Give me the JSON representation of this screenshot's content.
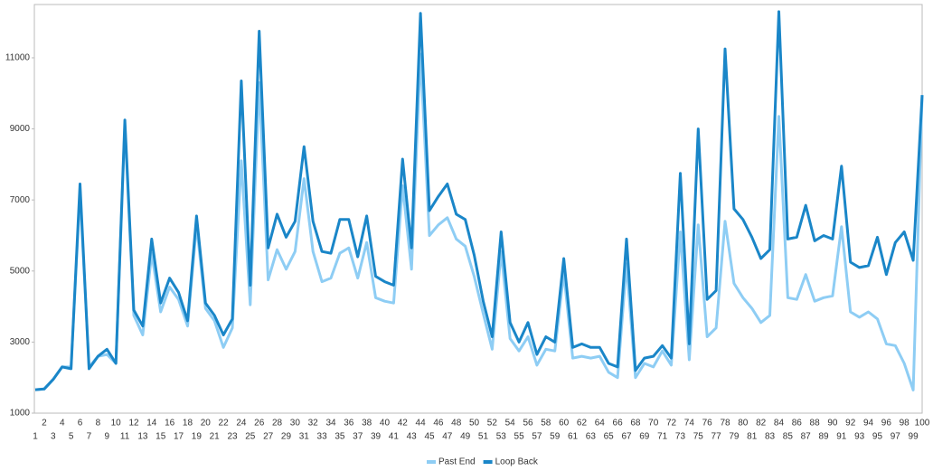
{
  "chart_data": {
    "type": "line",
    "categories": [
      1,
      2,
      3,
      4,
      5,
      6,
      7,
      8,
      9,
      10,
      11,
      12,
      13,
      14,
      15,
      16,
      17,
      18,
      19,
      20,
      21,
      22,
      23,
      24,
      25,
      26,
      27,
      28,
      29,
      30,
      31,
      32,
      33,
      34,
      35,
      36,
      37,
      38,
      39,
      40,
      41,
      42,
      43,
      44,
      45,
      46,
      47,
      48,
      49,
      50,
      51,
      52,
      53,
      54,
      55,
      56,
      57,
      58,
      59,
      60,
      61,
      62,
      63,
      64,
      65,
      66,
      67,
      68,
      69,
      70,
      71,
      72,
      73,
      74,
      75,
      76,
      77,
      78,
      79,
      80,
      81,
      82,
      83,
      84,
      85,
      86,
      87,
      88,
      89,
      90,
      91,
      92,
      93,
      94,
      95,
      96,
      97,
      98,
      99,
      100
    ],
    "series": [
      {
        "name": "Past End",
        "color": "#8ecdf4",
        "values": [
          1660,
          1680,
          1950,
          2300,
          2300,
          7200,
          2300,
          2600,
          2650,
          2400,
          9100,
          3750,
          3200,
          5500,
          3850,
          4550,
          4200,
          3450,
          6300,
          3950,
          3600,
          2850,
          3400,
          8100,
          4050,
          10300,
          4750,
          5600,
          5050,
          5550,
          7600,
          5550,
          4700,
          4800,
          5500,
          5650,
          4800,
          5800,
          4250,
          4150,
          4100,
          7400,
          5050,
          11100,
          6000,
          6300,
          6500,
          5900,
          5700,
          4850,
          3800,
          2800,
          5550,
          3100,
          2750,
          3150,
          2350,
          2800,
          2750,
          4950,
          2550,
          2600,
          2550,
          2600,
          2150,
          2000,
          5200,
          2000,
          2400,
          2300,
          2750,
          2350,
          6100,
          2500,
          6300,
          3150,
          3400,
          6400,
          4650,
          4250,
          3950,
          3550,
          3750,
          9350,
          4250,
          4200,
          4900,
          4150,
          4250,
          4300,
          6250,
          3850,
          3700,
          3850,
          3650,
          2950,
          2900,
          2400,
          1650,
          9950
        ]
      },
      {
        "name": "Loop Back",
        "color": "#1a86c8",
        "values": [
          1660,
          1680,
          1950,
          2300,
          2250,
          7450,
          2250,
          2600,
          2800,
          2400,
          9250,
          3900,
          3450,
          5900,
          4100,
          4800,
          4400,
          3600,
          6550,
          4100,
          3750,
          3200,
          3650,
          10350,
          4600,
          11750,
          5650,
          6600,
          5950,
          6400,
          8500,
          6400,
          5550,
          5500,
          6450,
          6450,
          5400,
          6550,
          4850,
          4700,
          4600,
          8150,
          5650,
          12250,
          6700,
          7100,
          7450,
          6600,
          6450,
          5450,
          4150,
          3150,
          6100,
          3550,
          3000,
          3550,
          2650,
          3150,
          3000,
          5350,
          2850,
          2950,
          2850,
          2850,
          2400,
          2300,
          5900,
          2200,
          2550,
          2600,
          2900,
          2550,
          7750,
          2950,
          9000,
          4200,
          4450,
          11250,
          6750,
          6450,
          5950,
          5350,
          5600,
          12300,
          5900,
          5950,
          6850,
          5850,
          6000,
          5900,
          7950,
          5250,
          5100,
          5150,
          5950,
          4900,
          5800,
          6100,
          5300,
          9950
        ]
      }
    ],
    "ylim": [
      1000,
      12500
    ],
    "yticks": [
      1000,
      3000,
      5000,
      7000,
      9000,
      11000
    ],
    "grid": false,
    "legend": "bottom"
  }
}
